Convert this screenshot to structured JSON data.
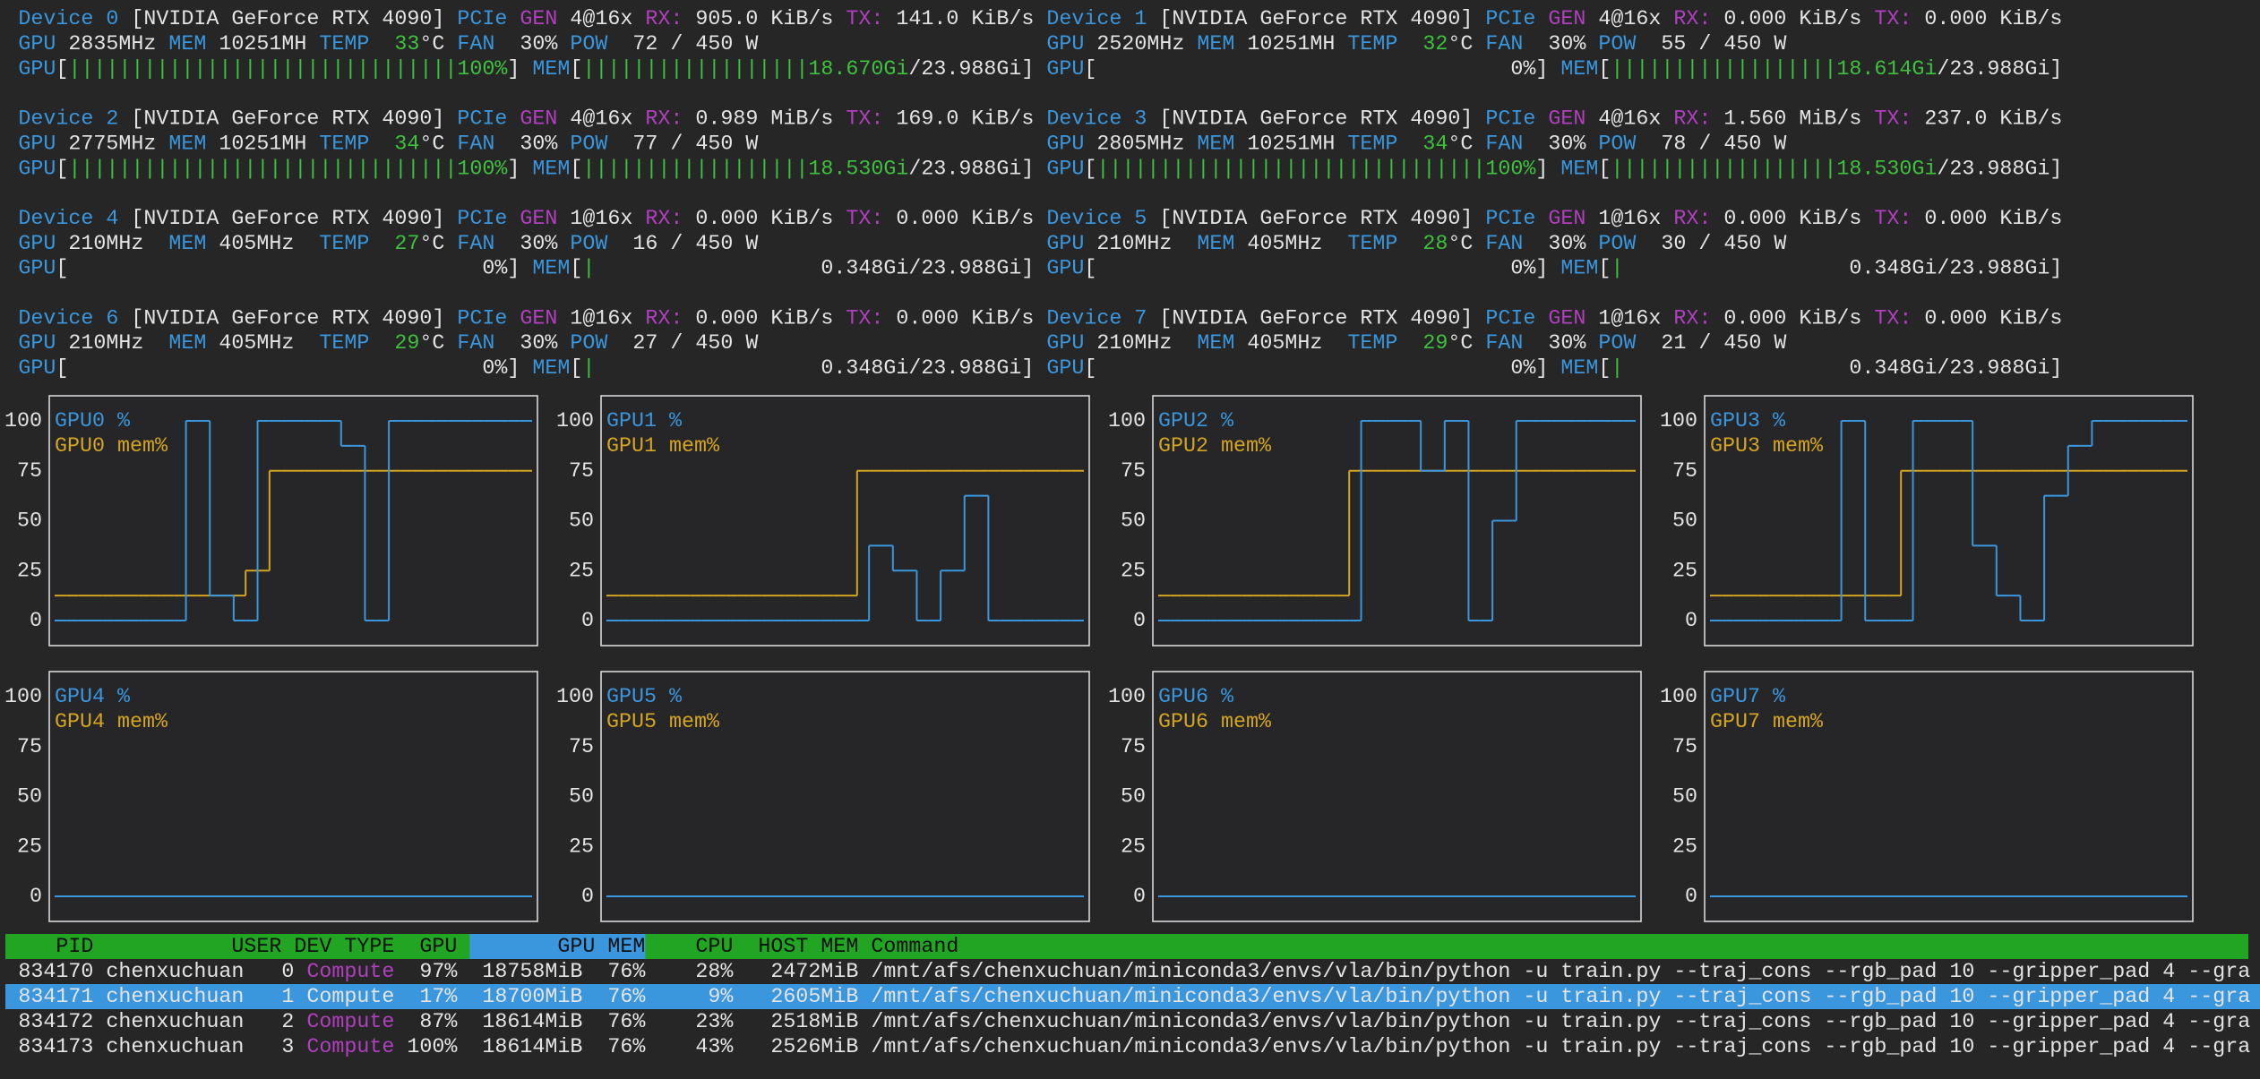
{
  "labels": {
    "pcie": "PCIe",
    "gen": "GEN",
    "rx": "RX:",
    "tx": "TX:",
    "gpu": "GPU",
    "mem": "MEM",
    "temp": "TEMP",
    "fan": "FAN",
    "pow": "POW",
    "deg": "°C",
    "slash": "/",
    "watt": "W",
    "bar_open": "[",
    "bar_close": "]"
  },
  "devices": [
    {
      "label": "Device 0",
      "name": "[NVIDIA GeForce RTX 4090]",
      "gen": "4@16x",
      "rx": "905.0 KiB/s",
      "tx": "141.0 KiB/s",
      "gpu_clock": "2835MHz",
      "mem_clock": "10251MH",
      "temp": "33",
      "fan": "30%",
      "pow": "72",
      "pow_max": "450",
      "gpu_util": {
        "value": 100,
        "label": "100%"
      },
      "mem_used": {
        "value": 18.67,
        "label": "18.670Gi"
      },
      "mem_total": {
        "value": 23.988,
        "label": "23.988Gi"
      }
    },
    {
      "label": "Device 1",
      "name": "[NVIDIA GeForce RTX 4090]",
      "gen": "4@16x",
      "rx": "0.000 KiB/s",
      "tx": "0.000 KiB/s",
      "gpu_clock": "2520MHz",
      "mem_clock": "10251MH",
      "temp": "32",
      "fan": "30%",
      "pow": "55",
      "pow_max": "450",
      "gpu_util": {
        "value": 0,
        "label": "0%"
      },
      "mem_used": {
        "value": 18.614,
        "label": "18.614Gi"
      },
      "mem_total": {
        "value": 23.988,
        "label": "23.988Gi"
      }
    },
    {
      "label": "Device 2",
      "name": "[NVIDIA GeForce RTX 4090]",
      "gen": "4@16x",
      "rx": "0.989 MiB/s",
      "tx": "169.0 KiB/s",
      "gpu_clock": "2775MHz",
      "mem_clock": "10251MH",
      "temp": "34",
      "fan": "30%",
      "pow": "77",
      "pow_max": "450",
      "gpu_util": {
        "value": 100,
        "label": "100%"
      },
      "mem_used": {
        "value": 18.53,
        "label": "18.530Gi"
      },
      "mem_total": {
        "value": 23.988,
        "label": "23.988Gi"
      }
    },
    {
      "label": "Device 3",
      "name": "[NVIDIA GeForce RTX 4090]",
      "gen": "4@16x",
      "rx": "1.560 MiB/s",
      "tx": "237.0 KiB/s",
      "gpu_clock": "2805MHz",
      "mem_clock": "10251MH",
      "temp": "34",
      "fan": "30%",
      "pow": "78",
      "pow_max": "450",
      "gpu_util": {
        "value": 100,
        "label": "100%"
      },
      "mem_used": {
        "value": 18.53,
        "label": "18.530Gi"
      },
      "mem_total": {
        "value": 23.988,
        "label": "23.988Gi"
      }
    },
    {
      "label": "Device 4",
      "name": "[NVIDIA GeForce RTX 4090]",
      "gen": "1@16x",
      "rx": "0.000 KiB/s",
      "tx": "0.000 KiB/s",
      "gpu_clock": "210MHz",
      "mem_clock": "405MHz",
      "temp": "27",
      "fan": "30%",
      "pow": "16",
      "pow_max": "450",
      "gpu_util": {
        "value": 0,
        "label": "0%"
      },
      "mem_used": {
        "value": 0.348,
        "label": "0.348Gi"
      },
      "mem_total": {
        "value": 23.988,
        "label": "23.988Gi"
      }
    },
    {
      "label": "Device 5",
      "name": "[NVIDIA GeForce RTX 4090]",
      "gen": "1@16x",
      "rx": "0.000 KiB/s",
      "tx": "0.000 KiB/s",
      "gpu_clock": "210MHz",
      "mem_clock": "405MHz",
      "temp": "28",
      "fan": "30%",
      "pow": "30",
      "pow_max": "450",
      "gpu_util": {
        "value": 0,
        "label": "0%"
      },
      "mem_used": {
        "value": 0.348,
        "label": "0.348Gi"
      },
      "mem_total": {
        "value": 23.988,
        "label": "23.988Gi"
      }
    },
    {
      "label": "Device 6",
      "name": "[NVIDIA GeForce RTX 4090]",
      "gen": "1@16x",
      "rx": "0.000 KiB/s",
      "tx": "0.000 KiB/s",
      "gpu_clock": "210MHz",
      "mem_clock": "405MHz",
      "temp": "29",
      "fan": "30%",
      "pow": "27",
      "pow_max": "450",
      "gpu_util": {
        "value": 0,
        "label": "0%"
      },
      "mem_used": {
        "value": 0.348,
        "label": "0.348Gi"
      },
      "mem_total": {
        "value": 23.988,
        "label": "23.988Gi"
      }
    },
    {
      "label": "Device 7",
      "name": "[NVIDIA GeForce RTX 4090]",
      "gen": "1@16x",
      "rx": "0.000 KiB/s",
      "tx": "0.000 KiB/s",
      "gpu_clock": "210MHz",
      "mem_clock": "405MHz",
      "temp": "29",
      "fan": "30%",
      "pow": "21",
      "pow_max": "450",
      "gpu_util": {
        "value": 0,
        "label": "0%"
      },
      "mem_used": {
        "value": 0.348,
        "label": "0.348Gi"
      },
      "mem_total": {
        "value": 23.988,
        "label": "23.988Gi"
      }
    }
  ],
  "charts": [
    {
      "type": "line",
      "ylim": [
        0,
        100
      ],
      "yticks": [
        0,
        25,
        50,
        75,
        100
      ],
      "series": [
        {
          "name": "GPU0 %",
          "color": "#3a96dd",
          "values": [
            0,
            0,
            0,
            0,
            0,
            0,
            0,
            0,
            0,
            0,
            0,
            100,
            100,
            12.5,
            12.5,
            0,
            0,
            100,
            100,
            100,
            100,
            100,
            100,
            100,
            87.5,
            87.5,
            0,
            0,
            100,
            100,
            100,
            100,
            100,
            100,
            100,
            100,
            100,
            100,
            100,
            100
          ]
        },
        {
          "name": "GPU0 mem%",
          "color": "#d4a520",
          "values": [
            12.5,
            12.5,
            12.5,
            12.5,
            12.5,
            12.5,
            12.5,
            12.5,
            12.5,
            12.5,
            12.5,
            12.5,
            12.5,
            12.5,
            12.5,
            12.5,
            25,
            25,
            75,
            75,
            75,
            75,
            75,
            75,
            75,
            75,
            75,
            75,
            75,
            75,
            75,
            75,
            75,
            75,
            75,
            75,
            75,
            75,
            75,
            75
          ]
        }
      ]
    },
    {
      "type": "line",
      "ylim": [
        0,
        100
      ],
      "yticks": [
        0,
        25,
        50,
        75,
        100
      ],
      "series": [
        {
          "name": "GPU1 %",
          "color": "#3a96dd",
          "values": [
            0,
            0,
            0,
            0,
            0,
            0,
            0,
            0,
            0,
            0,
            0,
            0,
            0,
            0,
            0,
            0,
            0,
            0,
            0,
            0,
            0,
            0,
            37.5,
            37.5,
            25,
            25,
            0,
            0,
            25,
            25,
            62.5,
            62.5,
            0,
            0,
            0,
            0,
            0,
            0,
            0,
            0
          ]
        },
        {
          "name": "GPU1 mem%",
          "color": "#d4a520",
          "values": [
            12.5,
            12.5,
            12.5,
            12.5,
            12.5,
            12.5,
            12.5,
            12.5,
            12.5,
            12.5,
            12.5,
            12.5,
            12.5,
            12.5,
            12.5,
            12.5,
            12.5,
            12.5,
            12.5,
            12.5,
            12.5,
            75,
            75,
            75,
            75,
            75,
            75,
            75,
            75,
            75,
            75,
            75,
            75,
            75,
            75,
            75,
            75,
            75,
            75,
            75
          ]
        }
      ]
    },
    {
      "type": "line",
      "ylim": [
        0,
        100
      ],
      "yticks": [
        0,
        25,
        50,
        75,
        100
      ],
      "series": [
        {
          "name": "GPU2 %",
          "color": "#3a96dd",
          "values": [
            0,
            0,
            0,
            0,
            0,
            0,
            0,
            0,
            0,
            0,
            0,
            0,
            0,
            0,
            0,
            0,
            0,
            100,
            100,
            100,
            100,
            100,
            75,
            75,
            100,
            100,
            0,
            0,
            50,
            50,
            100,
            100,
            100,
            100,
            100,
            100,
            100,
            100,
            100,
            100
          ]
        },
        {
          "name": "GPU2 mem%",
          "color": "#d4a520",
          "values": [
            12.5,
            12.5,
            12.5,
            12.5,
            12.5,
            12.5,
            12.5,
            12.5,
            12.5,
            12.5,
            12.5,
            12.5,
            12.5,
            12.5,
            12.5,
            12.5,
            75,
            75,
            75,
            75,
            75,
            75,
            75,
            75,
            75,
            75,
            75,
            75,
            75,
            75,
            75,
            75,
            75,
            75,
            75,
            75,
            75,
            75,
            75,
            75
          ]
        }
      ]
    },
    {
      "type": "line",
      "ylim": [
        0,
        100
      ],
      "yticks": [
        0,
        25,
        50,
        75,
        100
      ],
      "series": [
        {
          "name": "GPU3 %",
          "color": "#3a96dd",
          "values": [
            0,
            0,
            0,
            0,
            0,
            0,
            0,
            0,
            0,
            0,
            0,
            100,
            100,
            0,
            0,
            0,
            0,
            100,
            100,
            100,
            100,
            100,
            37.5,
            37.5,
            12.5,
            12.5,
            0,
            0,
            62.5,
            62.5,
            87.5,
            87.5,
            100,
            100,
            100,
            100,
            100,
            100,
            100,
            100
          ]
        },
        {
          "name": "GPU3 mem%",
          "color": "#d4a520",
          "values": [
            12.5,
            12.5,
            12.5,
            12.5,
            12.5,
            12.5,
            12.5,
            12.5,
            12.5,
            12.5,
            12.5,
            12.5,
            12.5,
            12.5,
            12.5,
            12.5,
            75,
            75,
            75,
            75,
            75,
            75,
            75,
            75,
            75,
            75,
            75,
            75,
            75,
            75,
            75,
            75,
            75,
            75,
            75,
            75,
            75,
            75,
            75,
            75
          ]
        }
      ]
    },
    {
      "type": "line",
      "ylim": [
        0,
        100
      ],
      "yticks": [
        0,
        25,
        50,
        75,
        100
      ],
      "series": [
        {
          "name": "GPU4 %",
          "color": "#3a96dd",
          "values": [
            0,
            0,
            0,
            0,
            0,
            0,
            0,
            0,
            0,
            0,
            0,
            0,
            0,
            0,
            0,
            0,
            0,
            0,
            0,
            0,
            0,
            0,
            0,
            0,
            0,
            0,
            0,
            0,
            0,
            0,
            0,
            0,
            0,
            0,
            0,
            0,
            0,
            0,
            0,
            0
          ]
        },
        {
          "name": "GPU4 mem%",
          "color": "#d4a520",
          "values": [
            0,
            0,
            0,
            0,
            0,
            0,
            0,
            0,
            0,
            0,
            0,
            0,
            0,
            0,
            0,
            0,
            0,
            0,
            0,
            0,
            0,
            0,
            0,
            0,
            0,
            0,
            0,
            0,
            0,
            0,
            0,
            0,
            0,
            0,
            0,
            0,
            0,
            0,
            0,
            0
          ]
        }
      ]
    },
    {
      "type": "line",
      "ylim": [
        0,
        100
      ],
      "yticks": [
        0,
        25,
        50,
        75,
        100
      ],
      "series": [
        {
          "name": "GPU5 %",
          "color": "#3a96dd",
          "values": [
            0,
            0,
            0,
            0,
            0,
            0,
            0,
            0,
            0,
            0,
            0,
            0,
            0,
            0,
            0,
            0,
            0,
            0,
            0,
            0,
            0,
            0,
            0,
            0,
            0,
            0,
            0,
            0,
            0,
            0,
            0,
            0,
            0,
            0,
            0,
            0,
            0,
            0,
            0,
            0
          ]
        },
        {
          "name": "GPU5 mem%",
          "color": "#d4a520",
          "values": [
            0,
            0,
            0,
            0,
            0,
            0,
            0,
            0,
            0,
            0,
            0,
            0,
            0,
            0,
            0,
            0,
            0,
            0,
            0,
            0,
            0,
            0,
            0,
            0,
            0,
            0,
            0,
            0,
            0,
            0,
            0,
            0,
            0,
            0,
            0,
            0,
            0,
            0,
            0,
            0
          ]
        }
      ]
    },
    {
      "type": "line",
      "ylim": [
        0,
        100
      ],
      "yticks": [
        0,
        25,
        50,
        75,
        100
      ],
      "series": [
        {
          "name": "GPU6 %",
          "color": "#3a96dd",
          "values": [
            0,
            0,
            0,
            0,
            0,
            0,
            0,
            0,
            0,
            0,
            0,
            0,
            0,
            0,
            0,
            0,
            0,
            0,
            0,
            0,
            0,
            0,
            0,
            0,
            0,
            0,
            0,
            0,
            0,
            0,
            0,
            0,
            0,
            0,
            0,
            0,
            0,
            0,
            0,
            0
          ]
        },
        {
          "name": "GPU6 mem%",
          "color": "#d4a520",
          "values": [
            0,
            0,
            0,
            0,
            0,
            0,
            0,
            0,
            0,
            0,
            0,
            0,
            0,
            0,
            0,
            0,
            0,
            0,
            0,
            0,
            0,
            0,
            0,
            0,
            0,
            0,
            0,
            0,
            0,
            0,
            0,
            0,
            0,
            0,
            0,
            0,
            0,
            0,
            0,
            0
          ]
        }
      ]
    },
    {
      "type": "line",
      "ylim": [
        0,
        100
      ],
      "yticks": [
        0,
        25,
        50,
        75,
        100
      ],
      "series": [
        {
          "name": "GPU7 %",
          "color": "#3a96dd",
          "values": [
            0,
            0,
            0,
            0,
            0,
            0,
            0,
            0,
            0,
            0,
            0,
            0,
            0,
            0,
            0,
            0,
            0,
            0,
            0,
            0,
            0,
            0,
            0,
            0,
            0,
            0,
            0,
            0,
            0,
            0,
            0,
            0,
            0,
            0,
            0,
            0,
            0,
            0,
            0,
            0
          ]
        },
        {
          "name": "GPU7 mem%",
          "color": "#d4a520",
          "values": [
            0,
            0,
            0,
            0,
            0,
            0,
            0,
            0,
            0,
            0,
            0,
            0,
            0,
            0,
            0,
            0,
            0,
            0,
            0,
            0,
            0,
            0,
            0,
            0,
            0,
            0,
            0,
            0,
            0,
            0,
            0,
            0,
            0,
            0,
            0,
            0,
            0,
            0,
            0,
            0
          ]
        }
      ]
    }
  ],
  "process_table": {
    "header": [
      "PID",
      "USER",
      "DEV",
      "TYPE",
      "GPU",
      "GPU MEM",
      "CPU",
      "HOST MEM",
      "Command"
    ],
    "selected_row": 1,
    "rows": [
      [
        "834170",
        "chenxuchuan",
        "0",
        "Compute",
        "97%",
        "18758MiB",
        "76%",
        "28%",
        "2472MiB",
        "/mnt/afs/chenxuchuan/miniconda3/envs/vla/bin/python -u train.py --traj_cons --rgb_pad 10 --gripper_pad 4 --gra"
      ],
      [
        "834171",
        "chenxuchuan",
        "1",
        "Compute",
        "17%",
        "18700MiB",
        "76%",
        "9%",
        "2605MiB",
        "/mnt/afs/chenxuchuan/miniconda3/envs/vla/bin/python -u train.py --traj_cons --rgb_pad 10 --gripper_pad 4 --gra"
      ],
      [
        "834172",
        "chenxuchuan",
        "2",
        "Compute",
        "87%",
        "18614MiB",
        "76%",
        "23%",
        "2518MiB",
        "/mnt/afs/chenxuchuan/miniconda3/envs/vla/bin/python -u train.py --traj_cons --rgb_pad 10 --gripper_pad 4 --gra"
      ],
      [
        "834173",
        "chenxuchuan",
        "3",
        "Compute",
        "100%",
        "18614MiB",
        "76%",
        "43%",
        "2526MiB",
        "/mnt/afs/chenxuchuan/miniconda3/envs/vla/bin/python -u train.py --traj_cons --rgb_pad 10 --gripper_pad 4 --gra"
      ]
    ]
  }
}
